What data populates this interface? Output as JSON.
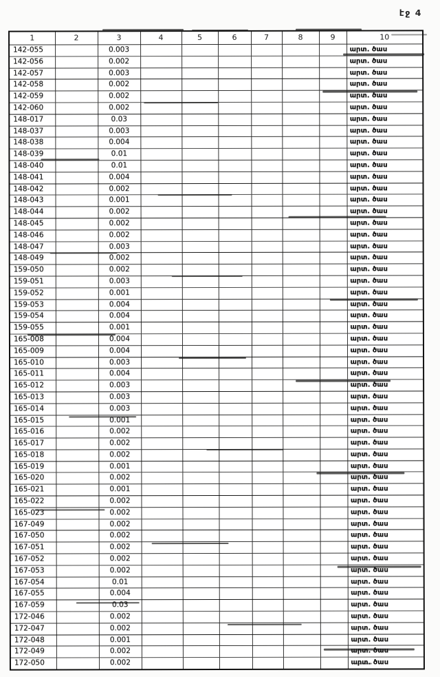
{
  "page": {
    "label": "էջ 4"
  },
  "table": {
    "headers": [
      "1",
      "2",
      "3",
      "4",
      "5",
      "6",
      "7",
      "8",
      "9",
      "10"
    ],
    "rows": [
      {
        "id": "142-055",
        "value": "0.003",
        "note": "արտ. ծաս"
      },
      {
        "id": "142-056",
        "value": "0.002",
        "note": "արտ. ծաս"
      },
      {
        "id": "142-057",
        "value": "0.003",
        "note": "արտ. ծաս"
      },
      {
        "id": "142-058",
        "value": "0.002",
        "note": "արտ. ծաս"
      },
      {
        "id": "142-059",
        "value": "0.002",
        "note": "արտ. ծաս"
      },
      {
        "id": "142-060",
        "value": "0.002",
        "note": "արտ. ծաս"
      },
      {
        "id": "148-017",
        "value": "0.03",
        "note": "արտ. ծաս"
      },
      {
        "id": "148-037",
        "value": "0.003",
        "note": "արտ. ծաս"
      },
      {
        "id": "148-038",
        "value": "0.004",
        "note": "արտ. ծաս"
      },
      {
        "id": "148-039",
        "value": "0.01",
        "note": "արտ. ծաս"
      },
      {
        "id": "148-040",
        "value": "0.01",
        "note": "արտ. ծաս"
      },
      {
        "id": "148-041",
        "value": "0.004",
        "note": "արտ. ծաս"
      },
      {
        "id": "148-042",
        "value": "0.002",
        "note": "արտ. ծաս"
      },
      {
        "id": "148-043",
        "value": "0.001",
        "note": "արտ. ծաս"
      },
      {
        "id": "148-044",
        "value": "0.002",
        "note": "արտ. ծաս"
      },
      {
        "id": "148-045",
        "value": "0.002",
        "note": "արտ. ծաս"
      },
      {
        "id": "148-046",
        "value": "0.002",
        "note": "արտ. ծաս"
      },
      {
        "id": "148-047",
        "value": "0.003",
        "note": "արտ. ծաս"
      },
      {
        "id": "148-049",
        "value": "0.002",
        "note": "արտ. ծաս"
      },
      {
        "id": "159-050",
        "value": "0.002",
        "note": "արտ. ծաս"
      },
      {
        "id": "159-051",
        "value": "0.003",
        "note": "արտ. ծաս"
      },
      {
        "id": "159-052",
        "value": "0.001",
        "note": "արտ. ծաս"
      },
      {
        "id": "159-053",
        "value": "0.004",
        "note": "արտ. ծաս"
      },
      {
        "id": "159-054",
        "value": "0.004",
        "note": "արտ. ծաս"
      },
      {
        "id": "159-055",
        "value": "0.001",
        "note": "արտ. ծաս"
      },
      {
        "id": "165-008",
        "value": "0.004",
        "note": "արտ. ծաս"
      },
      {
        "id": "165-009",
        "value": "0.004",
        "note": "արտ. ծաս"
      },
      {
        "id": "165-010",
        "value": "0.003",
        "note": "արտ. ծաս"
      },
      {
        "id": "165-011",
        "value": "0.004",
        "note": "արտ. ծաս"
      },
      {
        "id": "165-012",
        "value": "0.003",
        "note": "արտ. ծաս"
      },
      {
        "id": "165-013",
        "value": "0.003",
        "note": "արտ. ծաս"
      },
      {
        "id": "165-014",
        "value": "0.003",
        "note": "արտ. ծաս"
      },
      {
        "id": "165-015",
        "value": "0.001",
        "note": "արտ. ծաս"
      },
      {
        "id": "165-016",
        "value": "0.002",
        "note": "արտ. ծաս"
      },
      {
        "id": "165-017",
        "value": "0.002",
        "note": "արտ. ծաս"
      },
      {
        "id": "165-018",
        "value": "0.002",
        "note": "արտ. ծաս"
      },
      {
        "id": "165-019",
        "value": "0.001",
        "note": "արտ. ծաս"
      },
      {
        "id": "165-020",
        "value": "0.002",
        "note": "արտ. ծաս"
      },
      {
        "id": "165-021",
        "value": "0.001",
        "note": "արտ. ծաս"
      },
      {
        "id": "165-022",
        "value": "0.002",
        "note": "արտ. ծաս"
      },
      {
        "id": "165-023",
        "value": "0.002",
        "note": "արտ. ծաս"
      },
      {
        "id": "167-049",
        "value": "0.002",
        "note": "արտ. ծաս"
      },
      {
        "id": "167-050",
        "value": "0.002",
        "note": "արտ. ծաս"
      },
      {
        "id": "167-051",
        "value": "0.002",
        "note": "արտ. ծաս"
      },
      {
        "id": "167-052",
        "value": "0.002",
        "note": "արտ. ծաս"
      },
      {
        "id": "167-053",
        "value": "0.002",
        "note": "արտ. ծաս"
      },
      {
        "id": "167-054",
        "value": "0.01",
        "note": "արտ. ծաս"
      },
      {
        "id": "167-055",
        "value": "0.004",
        "note": "արտ. ծաս"
      },
      {
        "id": "167-059",
        "value": "0.03",
        "note": "արտ. ծաս"
      },
      {
        "id": "172-046",
        "value": "0.002",
        "note": "արտ. ծաս"
      },
      {
        "id": "172-047",
        "value": "0.002",
        "note": "արտ. ծաս"
      },
      {
        "id": "172-048",
        "value": "0.001",
        "note": "արտ. ծաս"
      },
      {
        "id": "172-049",
        "value": "0.002",
        "note": "արտ. ծաս"
      },
      {
        "id": "172-050",
        "value": "0.002",
        "note": "արտ. ծաս"
      }
    ]
  }
}
